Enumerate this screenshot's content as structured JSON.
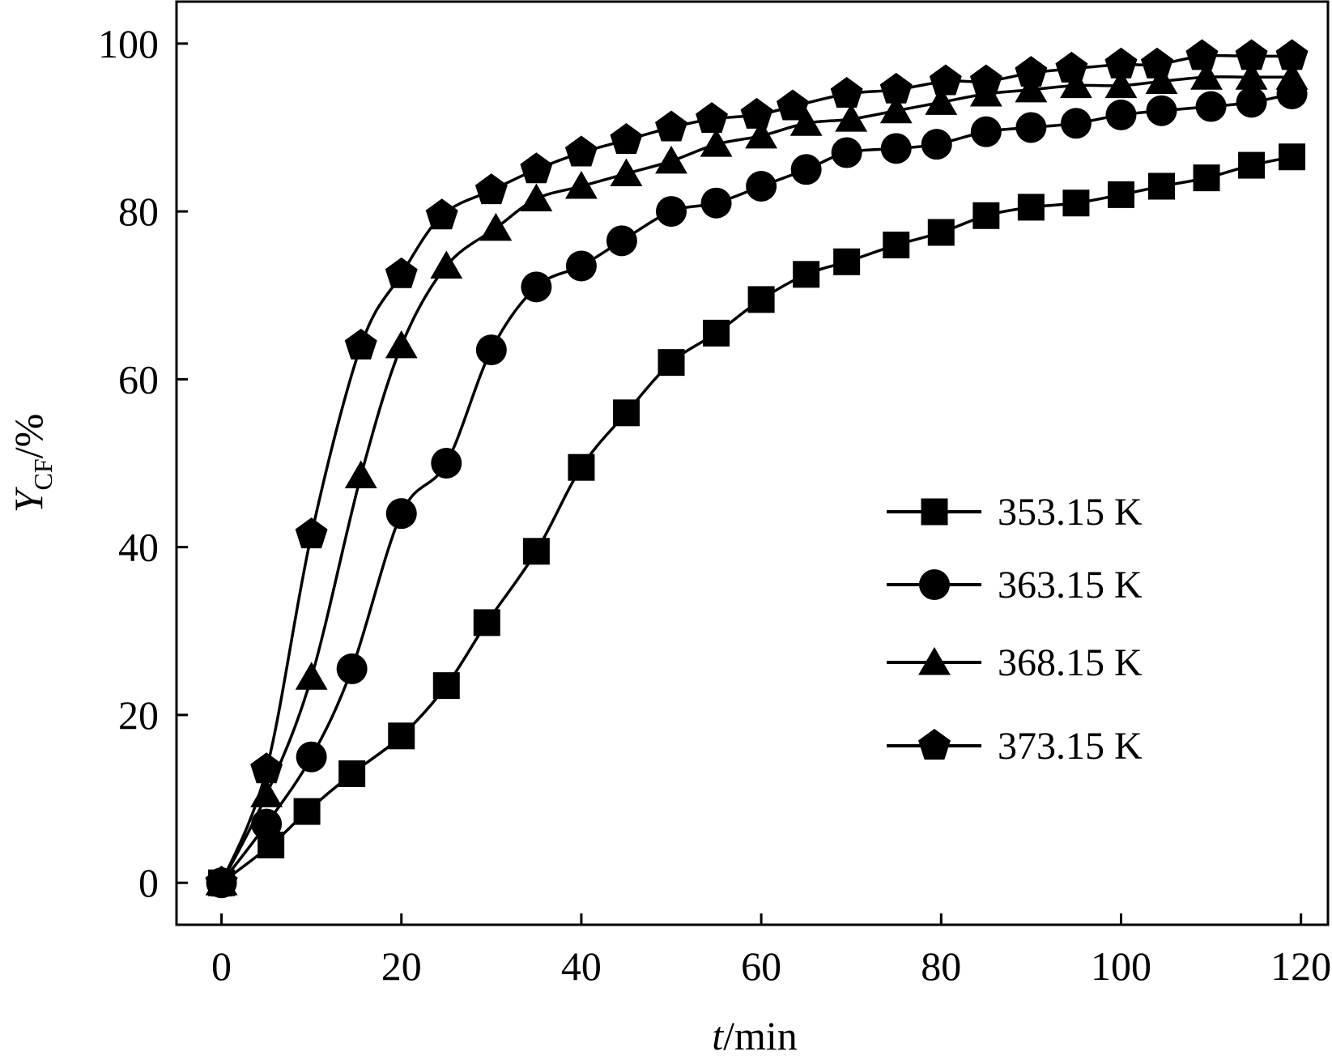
{
  "chart_data": {
    "type": "line",
    "xlabel": {
      "italic": "t",
      "rest": "/min"
    },
    "ylabel": {
      "main": "Y",
      "sub": "CF",
      "rest": "/%"
    },
    "xlim": [
      -5,
      123
    ],
    "ylim": [
      -5,
      105
    ],
    "xticks": [
      0,
      20,
      40,
      60,
      80,
      100,
      120
    ],
    "yticks": [
      0,
      20,
      40,
      60,
      80,
      100
    ],
    "xtick_labels": [
      "0",
      "20",
      "40",
      "60",
      "80",
      "100",
      "120"
    ],
    "ytick_labels": [
      "0",
      "20",
      "40",
      "60",
      "80",
      "100"
    ],
    "grid": false,
    "legend_position": "center-right",
    "color": "#000000",
    "series": [
      {
        "name": "353.15 K",
        "marker": "square",
        "x": [
          0,
          5.5,
          9.5,
          14.5,
          20,
          25,
          29.5,
          35,
          40,
          45,
          50,
          55,
          60,
          65,
          69.5,
          75,
          80,
          85,
          90,
          95,
          100,
          104.5,
          109.5,
          114.5,
          119
        ],
        "y": [
          0,
          4.5,
          8.5,
          13,
          17.5,
          23.5,
          31,
          39.5,
          49.5,
          56,
          62,
          65.5,
          69.5,
          72.5,
          74,
          76,
          77.5,
          79.5,
          80.5,
          81,
          82,
          83,
          84,
          85.5,
          86.5
        ]
      },
      {
        "name": "363.15 K",
        "marker": "circle",
        "x": [
          0,
          5,
          10,
          14.5,
          20,
          25,
          30,
          35,
          40,
          44.5,
          50,
          55,
          60,
          65,
          69.5,
          75,
          79.5,
          85,
          90,
          95,
          100,
          104.5,
          110,
          114.5,
          119
        ],
        "y": [
          0,
          7,
          15,
          25.5,
          44,
          50,
          63.5,
          71,
          73.5,
          76.5,
          80,
          81,
          83,
          85,
          87,
          87.5,
          88,
          89.5,
          90,
          90.5,
          91.5,
          92,
          92.5,
          93,
          94
        ]
      },
      {
        "name": "368.15 K",
        "marker": "triangle",
        "x": [
          0,
          5,
          10,
          15.5,
          20,
          25,
          30.5,
          35,
          40,
          45,
          50,
          55,
          60,
          65,
          70,
          75,
          80,
          85,
          90,
          95,
          100,
          104.5,
          109.5,
          114.5,
          119
        ],
        "y": [
          0,
          10.5,
          24.5,
          48.5,
          64,
          73.5,
          78,
          81.5,
          83,
          84.5,
          86,
          88,
          89,
          90.5,
          91,
          92,
          93,
          94,
          94.5,
          95,
          95,
          95.5,
          96,
          96,
          96
        ]
      },
      {
        "name": "373.15 K",
        "marker": "pentagon",
        "x": [
          0,
          5,
          10,
          15.5,
          20,
          24.5,
          30,
          35,
          40,
          45,
          50,
          54.5,
          59.5,
          63.5,
          69.5,
          75,
          80.5,
          85,
          90,
          94.5,
          100,
          104,
          109,
          114.5,
          119
        ],
        "y": [
          0,
          13.5,
          41.5,
          64,
          72.5,
          79.5,
          82.5,
          85,
          87,
          88.5,
          90,
          91,
          91.5,
          92.5,
          94,
          94.5,
          95.5,
          95.5,
          96.5,
          97,
          97.5,
          97.5,
          98.5,
          98.5,
          98.5
        ]
      }
    ]
  }
}
